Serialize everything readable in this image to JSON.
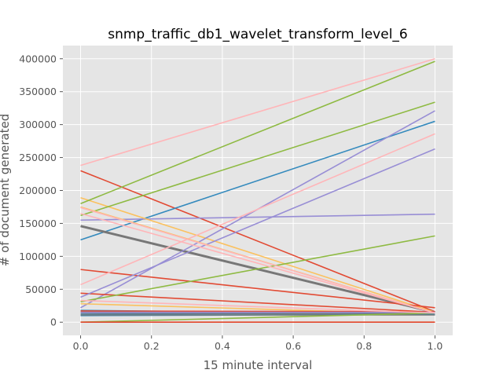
{
  "chart_data": {
    "type": "line",
    "title": "snmp_traffic_db1_wavelet_transform_level_6",
    "xlabel": "15 minute interval",
    "ylabel": "# of document generated",
    "xlim": [
      -0.05,
      1.05
    ],
    "ylim": [
      -20000,
      420000
    ],
    "xticks": [
      0.0,
      0.2,
      0.4,
      0.6,
      0.8,
      1.0
    ],
    "xtick_labels": [
      "0.0",
      "0.2",
      "0.4",
      "0.6",
      "0.8",
      "1.0"
    ],
    "yticks": [
      0,
      50000,
      100000,
      150000,
      200000,
      250000,
      300000,
      350000,
      400000
    ],
    "ytick_labels": [
      "0",
      "50000",
      "100000",
      "150000",
      "200000",
      "250000",
      "300000",
      "350000",
      "400000"
    ],
    "grid": true,
    "background": "#e5e5e5",
    "series": [
      {
        "x": [
          0,
          1
        ],
        "y": [
          230000,
          16000
        ],
        "color": "#e24a33"
      },
      {
        "x": [
          0,
          1
        ],
        "y": [
          125000,
          305000
        ],
        "color": "#348abd"
      },
      {
        "x": [
          0,
          1
        ],
        "y": [
          155000,
          164000
        ],
        "color": "#988ed5"
      },
      {
        "x": [
          0,
          1
        ],
        "y": [
          146000,
          15000
        ],
        "color": "#777777",
        "width": 3
      },
      {
        "x": [
          0,
          1
        ],
        "y": [
          189000,
          15000
        ],
        "color": "#fbc15e"
      },
      {
        "x": [
          0,
          1
        ],
        "y": [
          180000,
          396000
        ],
        "color": "#8eba42"
      },
      {
        "x": [
          0,
          1
        ],
        "y": [
          238000,
          400000
        ],
        "color": "#ffb5b8"
      },
      {
        "x": [
          0,
          1
        ],
        "y": [
          80000,
          22000
        ],
        "color": "#e24a33"
      },
      {
        "x": [
          0,
          1
        ],
        "y": [
          18000,
          12000
        ],
        "color": "#348abd"
      },
      {
        "x": [
          0,
          1
        ],
        "y": [
          22000,
          321000
        ],
        "color": "#988ed5"
      },
      {
        "x": [
          0,
          1
        ],
        "y": [
          16000,
          14000
        ],
        "color": "#777777"
      },
      {
        "x": [
          0,
          1
        ],
        "y": [
          28000,
          12000
        ],
        "color": "#fbc15e"
      },
      {
        "x": [
          0,
          1
        ],
        "y": [
          162000,
          334000
        ],
        "color": "#8eba42"
      },
      {
        "x": [
          0,
          1
        ],
        "y": [
          57000,
          286000
        ],
        "color": "#ffb5b8"
      },
      {
        "x": [
          0,
          1
        ],
        "y": [
          44000,
          15000
        ],
        "color": "#e24a33"
      },
      {
        "x": [
          0,
          1
        ],
        "y": [
          12000,
          14000
        ],
        "color": "#348abd"
      },
      {
        "x": [
          0,
          1
        ],
        "y": [
          38000,
          263000
        ],
        "color": "#988ed5"
      },
      {
        "x": [
          0,
          1
        ],
        "y": [
          14000,
          13000
        ],
        "color": "#777777"
      },
      {
        "x": [
          0,
          1
        ],
        "y": [
          175000,
          14000
        ],
        "color": "#fbc15e"
      },
      {
        "x": [
          0,
          1
        ],
        "y": [
          31000,
          131000
        ],
        "color": "#8eba42"
      },
      {
        "x": [
          0,
          1
        ],
        "y": [
          174000,
          14000
        ],
        "color": "#ffb5b8"
      },
      {
        "x": [
          0,
          1
        ],
        "y": [
          17000,
          16000
        ],
        "color": "#e24a33"
      },
      {
        "x": [
          0,
          1
        ],
        "y": [
          10000,
          12000
        ],
        "color": "#348abd"
      },
      {
        "x": [
          0,
          1
        ],
        "y": [
          15000,
          15000
        ],
        "color": "#988ed5"
      },
      {
        "x": [
          0,
          1
        ],
        "y": [
          11000,
          11000
        ],
        "color": "#777777"
      },
      {
        "x": [
          0,
          1
        ],
        "y": [
          0,
          0
        ],
        "color": "#fbc15e"
      },
      {
        "x": [
          0,
          1
        ],
        "y": [
          0,
          14000
        ],
        "color": "#8eba42"
      },
      {
        "x": [
          0,
          1
        ],
        "y": [
          165000,
          14000
        ],
        "color": "#ffb5b8"
      },
      {
        "x": [
          0,
          1
        ],
        "y": [
          33000,
          14000
        ],
        "color": "#ffb5b8"
      },
      {
        "x": [
          0,
          1
        ],
        "y": [
          0,
          0
        ],
        "color": "#e24a33"
      }
    ]
  }
}
